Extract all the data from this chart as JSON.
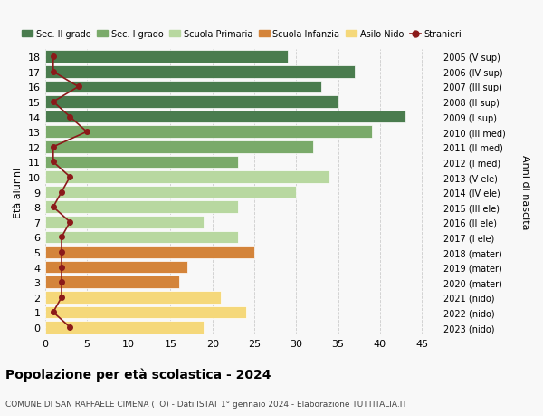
{
  "ages": [
    0,
    1,
    2,
    3,
    4,
    5,
    6,
    7,
    8,
    9,
    10,
    11,
    12,
    13,
    14,
    15,
    16,
    17,
    18
  ],
  "years_labels": [
    "2023 (nido)",
    "2022 (nido)",
    "2021 (nido)",
    "2020 (mater)",
    "2019 (mater)",
    "2018 (mater)",
    "2017 (I ele)",
    "2016 (II ele)",
    "2015 (III ele)",
    "2014 (IV ele)",
    "2013 (V ele)",
    "2012 (I med)",
    "2011 (II med)",
    "2010 (III med)",
    "2009 (I sup)",
    "2008 (II sup)",
    "2007 (III sup)",
    "2006 (IV sup)",
    "2005 (V sup)"
  ],
  "bar_values": [
    19,
    24,
    21,
    16,
    17,
    25,
    23,
    19,
    23,
    30,
    34,
    23,
    32,
    39,
    43,
    35,
    33,
    37,
    29
  ],
  "bar_colors": [
    "#f5d87a",
    "#f5d87a",
    "#f5d87a",
    "#d4843a",
    "#d4843a",
    "#d4843a",
    "#b8d8a0",
    "#b8d8a0",
    "#b8d8a0",
    "#b8d8a0",
    "#b8d8a0",
    "#7aaa6a",
    "#7aaa6a",
    "#7aaa6a",
    "#4a7c4e",
    "#4a7c4e",
    "#4a7c4e",
    "#4a7c4e",
    "#4a7c4e"
  ],
  "stranieri_values": [
    3,
    1,
    2,
    2,
    2,
    2,
    2,
    3,
    1,
    2,
    3,
    1,
    1,
    5,
    3,
    1,
    4,
    1,
    1
  ],
  "stranieri_color": "#8b1a1a",
  "title": "Popolazione per età scolastica - 2024",
  "subtitle": "COMUNE DI SAN RAFFAELE CIMENA (TO) - Dati ISTAT 1° gennaio 2024 - Elaborazione TUTTITALIA.IT",
  "ylabel_left": "Età alunni",
  "ylabel_right": "Anni di nascita",
  "xlim": [
    0,
    47
  ],
  "xticks": [
    0,
    5,
    10,
    15,
    20,
    25,
    30,
    35,
    40,
    45
  ],
  "legend_items": [
    {
      "label": "Sec. II grado",
      "color": "#4a7c4e",
      "type": "patch"
    },
    {
      "label": "Sec. I grado",
      "color": "#7aaa6a",
      "type": "patch"
    },
    {
      "label": "Scuola Primaria",
      "color": "#b8d8a0",
      "type": "patch"
    },
    {
      "label": "Scuola Infanzia",
      "color": "#d4843a",
      "type": "patch"
    },
    {
      "label": "Asilo Nido",
      "color": "#f5d87a",
      "type": "patch"
    },
    {
      "label": "Stranieri",
      "color": "#8b1a1a",
      "type": "line"
    }
  ],
  "bg_color": "#f8f8f8",
  "grid_color": "#cccccc"
}
